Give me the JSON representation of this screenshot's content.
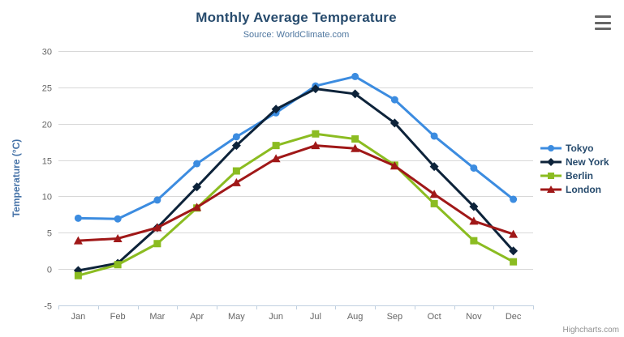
{
  "header": {
    "title": "Monthly Average Temperature",
    "subtitle": "Source: WorldClimate.com"
  },
  "chart_data": {
    "type": "line",
    "categories": [
      "Jan",
      "Feb",
      "Mar",
      "Apr",
      "May",
      "Jun",
      "Jul",
      "Aug",
      "Sep",
      "Oct",
      "Nov",
      "Dec"
    ],
    "series": [
      {
        "name": "Tokyo",
        "color": "#3c8ce0",
        "marker": "circle",
        "values": [
          7.0,
          6.9,
          9.5,
          14.5,
          18.2,
          21.5,
          25.2,
          26.5,
          23.3,
          18.3,
          13.9,
          9.6
        ]
      },
      {
        "name": "New York",
        "color": "#0d233a",
        "marker": "diamond",
        "values": [
          -0.2,
          0.8,
          5.7,
          11.3,
          17.0,
          22.0,
          24.8,
          24.1,
          20.1,
          14.1,
          8.6,
          2.5
        ]
      },
      {
        "name": "Berlin",
        "color": "#8bbc21",
        "marker": "square",
        "values": [
          -0.9,
          0.6,
          3.5,
          8.4,
          13.5,
          17.0,
          18.6,
          17.9,
          14.3,
          9.0,
          3.9,
          1.0
        ]
      },
      {
        "name": "London",
        "color": "#a01818",
        "marker": "triangle",
        "values": [
          3.9,
          4.2,
          5.7,
          8.5,
          11.9,
          15.2,
          17.0,
          16.6,
          14.2,
          10.3,
          6.6,
          4.8
        ]
      }
    ],
    "title": "Monthly Average Temperature",
    "subtitle": "Source: WorldClimate.com",
    "xlabel": "",
    "ylabel": "Temperature (°C)",
    "ylim": [
      -5,
      30
    ],
    "yticks": [
      -5,
      0,
      5,
      10,
      15,
      20,
      25,
      30
    ],
    "grid": true,
    "legend_position": "right"
  },
  "style": {
    "grid_color": "#d8d8d8",
    "axis_line_color": "#c0d0e0",
    "tick_label_color": "#666666",
    "y_axis_title_color": "#4572a7",
    "legend_text_color": "#274b6d"
  },
  "credits": {
    "label": "Highcharts.com"
  },
  "menu": {
    "icon": "hamburger-icon"
  }
}
